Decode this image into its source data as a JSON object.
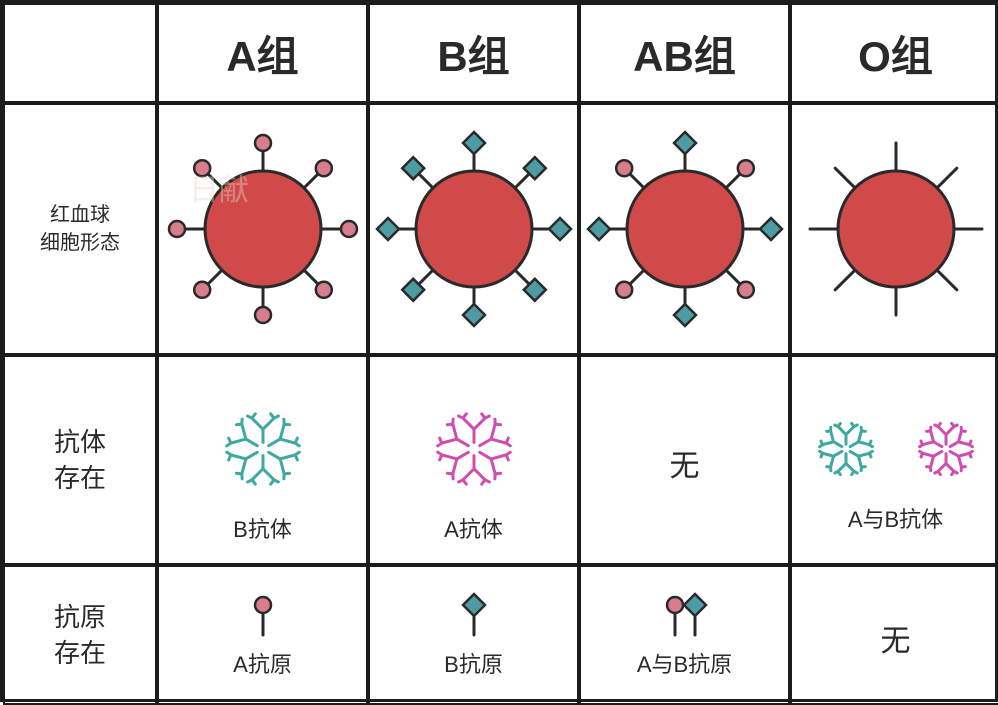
{
  "columns": [
    {
      "header": "A组",
      "antibody_label": "B抗体",
      "antigen_label": "A抗原"
    },
    {
      "header": "B组",
      "antibody_label": "A抗体",
      "antigen_label": "B抗原"
    },
    {
      "header": "AB组",
      "antibody_label": "无",
      "antigen_label": "A与B抗原"
    },
    {
      "header": "O组",
      "antibody_label": "A与B抗体",
      "antigen_label": "无"
    }
  ],
  "rows": {
    "cell_morphology": "红血球\n细胞形态",
    "antibody_present": "抗体\n存在",
    "antigen_present": "抗原\n存在"
  },
  "watermark": "日献",
  "colors": {
    "cell_fill": "#d14a4a",
    "cell_stroke": "#2a2a2a",
    "antigen_a_fill": "#d77d8c",
    "antigen_a_stroke": "#2a2a2a",
    "antigen_b_fill": "#4d9ba3",
    "antigen_b_stroke": "#2a2a2a",
    "antibody_teal": "#3fa8a0",
    "antibody_magenta": "#d04db0",
    "border": "#1c1c1c",
    "background": "#ffffff",
    "text": "#2a2a2a"
  },
  "diagram": {
    "cell_radius": 58,
    "antigen_stem_length": 28,
    "antigen_marker_radius": 8,
    "antigen_marker_diamond": 11,
    "stroke_width": 3,
    "spoke_count": 8
  },
  "fontsize": {
    "header": 42,
    "row_label": 26,
    "row_label_small": 20,
    "caption": 22,
    "caption_big": 30
  }
}
